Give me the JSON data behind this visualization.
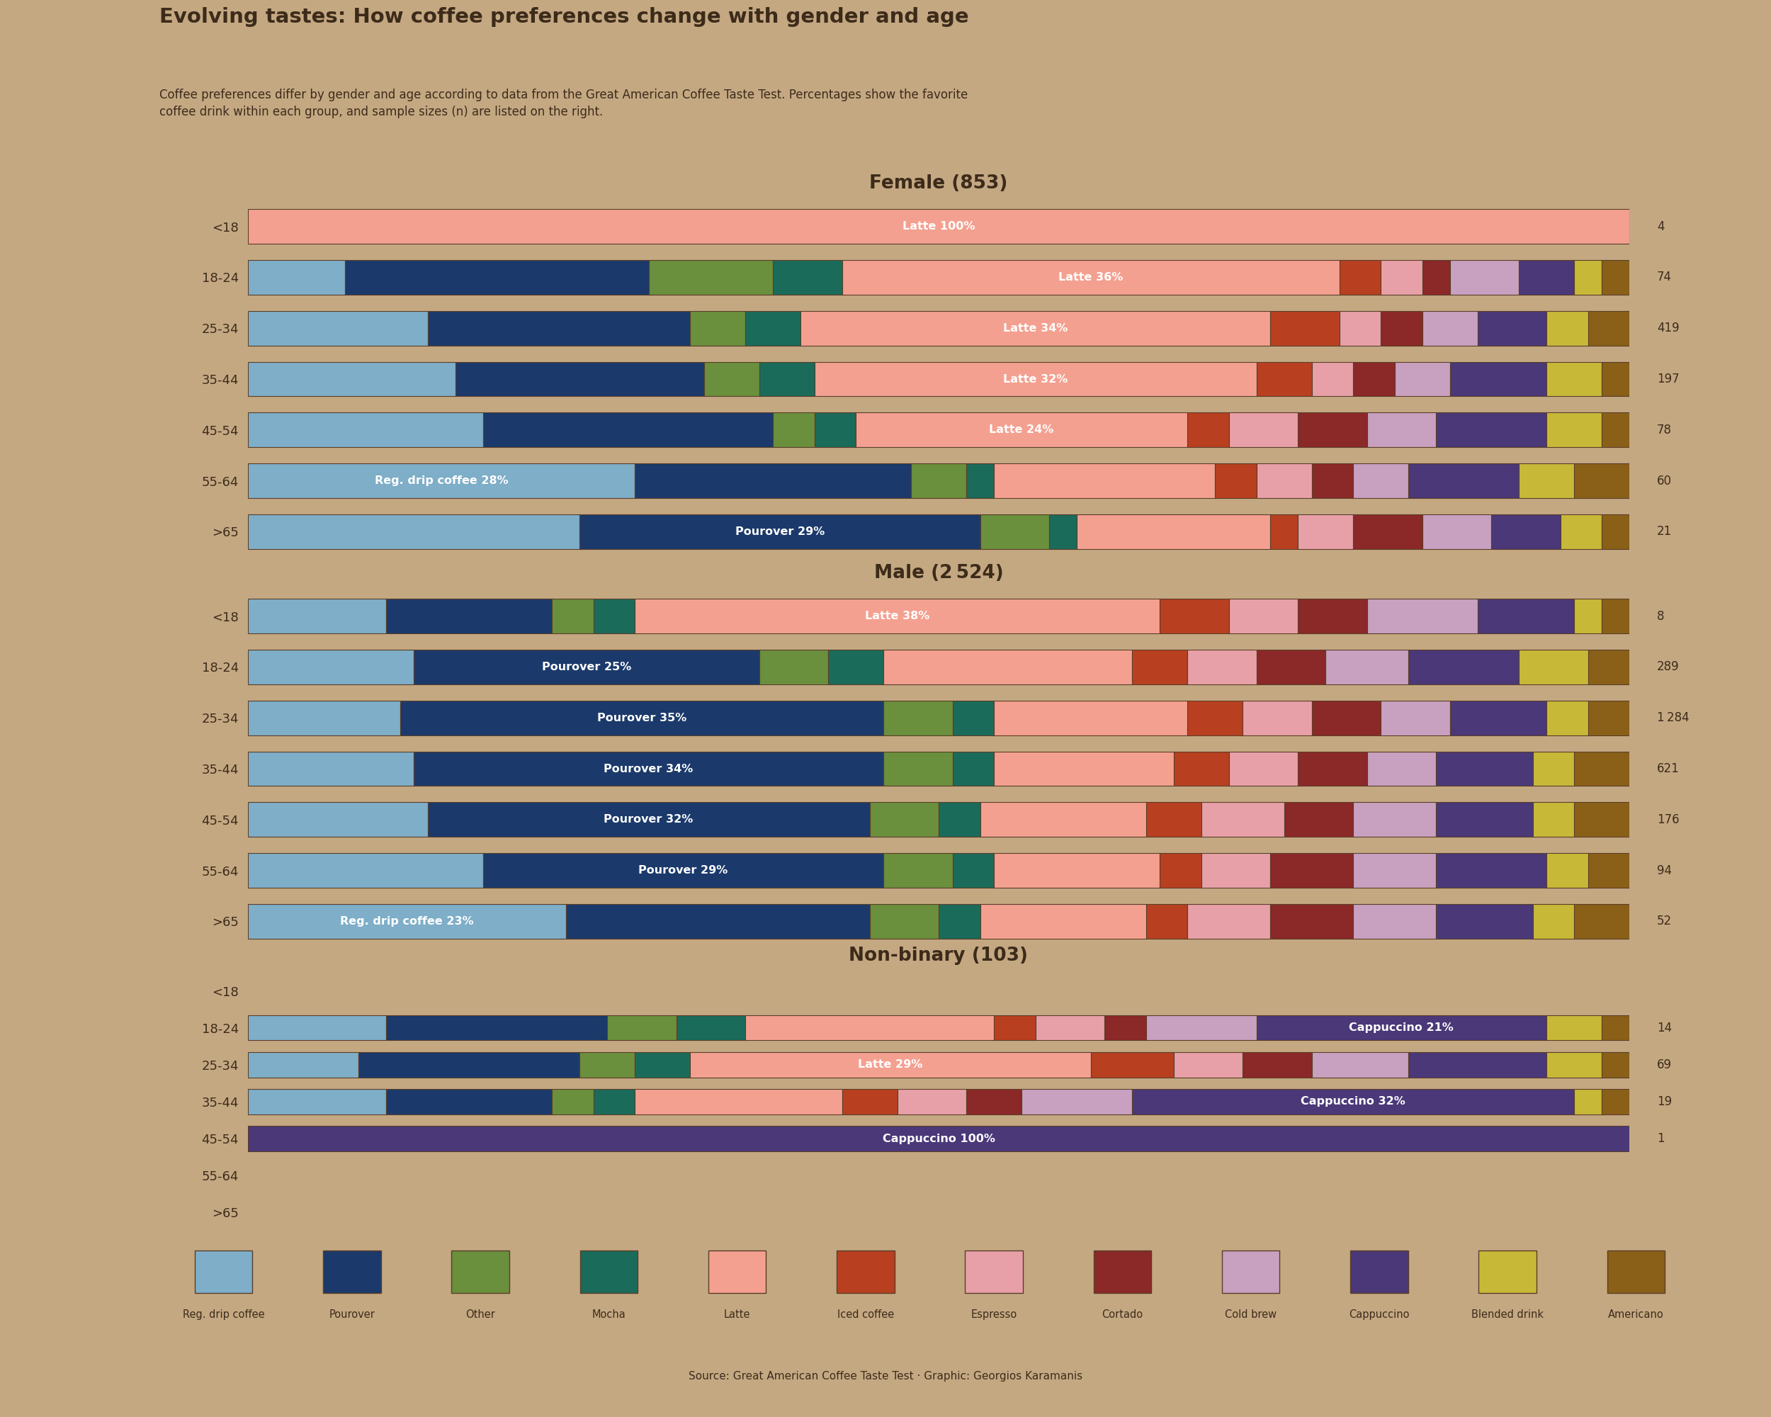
{
  "title": "Evolving tastes: How coffee preferences change with gender and age",
  "subtitle": "Coffee preferences differ by gender and age according to data from the Great American Coffee Taste Test. Percentages show the favorite\ncoffee drink within each group, and sample sizes (n) are listed on the right.",
  "source": "Source: Great American Coffee Taste Test · Graphic: Georgios Karamanis",
  "background_color": "#C4A882",
  "bar_edge_color": "#5a3e28",
  "text_color": "#3d2b1a",
  "categories": [
    "Reg. drip coffee",
    "Pourover",
    "Other",
    "Mocha",
    "Latte",
    "Iced coffee",
    "Espresso",
    "Cortado",
    "Cold brew",
    "Cappuccino",
    "Blended drink",
    "Americano"
  ],
  "colors": {
    "Reg. drip coffee": "#7eaec8",
    "Pourover": "#1b3a6b",
    "Other": "#6a8f3d",
    "Mocha": "#1b6b5a",
    "Latte": "#f4a090",
    "Iced coffee": "#b84020",
    "Espresso": "#e8a0a8",
    "Cortado": "#8b2828",
    "Cold brew": "#c8a0c0",
    "Cappuccino": "#4a3878",
    "Blended drink": "#c8b838",
    "Americano": "#8a6018"
  },
  "age_groups": [
    "<18",
    "18-24",
    "25-34",
    "35-44",
    "45-54",
    "55-64",
    ">65"
  ],
  "female_data": {
    "<18": {
      "Latte": 100
    },
    "18-24": {
      "Reg. drip coffee": 7,
      "Pourover": 22,
      "Other": 9,
      "Mocha": 5,
      "Latte": 36,
      "Iced coffee": 3,
      "Espresso": 3,
      "Cortado": 2,
      "Cold brew": 5,
      "Cappuccino": 4,
      "Blended drink": 2,
      "Americano": 2
    },
    "25-34": {
      "Reg. drip coffee": 13,
      "Pourover": 19,
      "Other": 4,
      "Mocha": 4,
      "Latte": 34,
      "Iced coffee": 5,
      "Espresso": 3,
      "Cortado": 3,
      "Cold brew": 4,
      "Cappuccino": 5,
      "Blended drink": 3,
      "Americano": 3
    },
    "35-44": {
      "Reg. drip coffee": 15,
      "Pourover": 18,
      "Other": 4,
      "Mocha": 4,
      "Latte": 32,
      "Iced coffee": 4,
      "Espresso": 3,
      "Cortado": 3,
      "Cold brew": 4,
      "Cappuccino": 7,
      "Blended drink": 4,
      "Americano": 2
    },
    "45-54": {
      "Reg. drip coffee": 17,
      "Pourover": 21,
      "Other": 3,
      "Mocha": 3,
      "Latte": 24,
      "Iced coffee": 3,
      "Espresso": 5,
      "Cortado": 5,
      "Cold brew": 5,
      "Cappuccino": 8,
      "Blended drink": 4,
      "Americano": 2
    },
    "55-64": {
      "Reg. drip coffee": 28,
      "Pourover": 20,
      "Other": 4,
      "Mocha": 2,
      "Latte": 16,
      "Iced coffee": 3,
      "Espresso": 4,
      "Cortado": 3,
      "Cold brew": 4,
      "Cappuccino": 8,
      "Blended drink": 4,
      "Americano": 4
    },
    ">65": {
      "Reg. drip coffee": 24,
      "Pourover": 29,
      "Other": 5,
      "Mocha": 2,
      "Latte": 14,
      "Iced coffee": 2,
      "Espresso": 4,
      "Cortado": 5,
      "Cold brew": 5,
      "Cappuccino": 5,
      "Blended drink": 3,
      "Americano": 2
    }
  },
  "female_n": {
    "<18": "4",
    "18-24": "74",
    "25-34": "419",
    "35-44": "197",
    "45-54": "78",
    "55-64": "60",
    ">65": "21"
  },
  "female_labels": {
    "<18": {
      "text": "Latte 100%",
      "cat": "Latte"
    },
    "18-24": {
      "text": "Latte 36%",
      "cat": "Latte"
    },
    "25-34": {
      "text": "Latte 34%",
      "cat": "Latte"
    },
    "35-44": {
      "text": "Latte 32%",
      "cat": "Latte"
    },
    "45-54": {
      "text": "Latte 24%",
      "cat": "Latte"
    },
    "55-64": {
      "text": "Reg. drip coffee 28%",
      "cat": "Reg. drip coffee"
    },
    ">65": {
      "text": "Pourover 29%",
      "cat": "Pourover"
    }
  },
  "male_data": {
    "<18": {
      "Reg. drip coffee": 10,
      "Pourover": 12,
      "Other": 3,
      "Mocha": 3,
      "Latte": 38,
      "Iced coffee": 5,
      "Espresso": 5,
      "Cortado": 5,
      "Cold brew": 8,
      "Cappuccino": 7,
      "Blended drink": 2,
      "Americano": 2
    },
    "18-24": {
      "Reg. drip coffee": 12,
      "Pourover": 25,
      "Other": 5,
      "Mocha": 4,
      "Latte": 18,
      "Iced coffee": 4,
      "Espresso": 5,
      "Cortado": 5,
      "Cold brew": 6,
      "Cappuccino": 8,
      "Blended drink": 5,
      "Americano": 3
    },
    "25-34": {
      "Reg. drip coffee": 11,
      "Pourover": 35,
      "Other": 5,
      "Mocha": 3,
      "Latte": 14,
      "Iced coffee": 4,
      "Espresso": 5,
      "Cortado": 5,
      "Cold brew": 5,
      "Cappuccino": 7,
      "Blended drink": 3,
      "Americano": 3
    },
    "35-44": {
      "Reg. drip coffee": 12,
      "Pourover": 34,
      "Other": 5,
      "Mocha": 3,
      "Latte": 13,
      "Iced coffee": 4,
      "Espresso": 5,
      "Cortado": 5,
      "Cold brew": 5,
      "Cappuccino": 7,
      "Blended drink": 3,
      "Americano": 4
    },
    "45-54": {
      "Reg. drip coffee": 13,
      "Pourover": 32,
      "Other": 5,
      "Mocha": 3,
      "Latte": 12,
      "Iced coffee": 4,
      "Espresso": 6,
      "Cortado": 5,
      "Cold brew": 6,
      "Cappuccino": 7,
      "Blended drink": 3,
      "Americano": 4
    },
    "55-64": {
      "Reg. drip coffee": 17,
      "Pourover": 29,
      "Other": 5,
      "Mocha": 3,
      "Latte": 12,
      "Iced coffee": 3,
      "Espresso": 5,
      "Cortado": 6,
      "Cold brew": 6,
      "Cappuccino": 8,
      "Blended drink": 3,
      "Americano": 3
    },
    ">65": {
      "Reg. drip coffee": 23,
      "Pourover": 22,
      "Other": 5,
      "Mocha": 3,
      "Latte": 12,
      "Iced coffee": 3,
      "Espresso": 6,
      "Cortado": 6,
      "Cold brew": 6,
      "Cappuccino": 7,
      "Blended drink": 3,
      "Americano": 4
    }
  },
  "male_n": {
    "<18": "8",
    "18-24": "289",
    "25-34": "1 284",
    "35-44": "621",
    "45-54": "176",
    "55-64": "94",
    ">65": "52"
  },
  "male_labels": {
    "<18": {
      "text": "Latte 38%",
      "cat": "Latte"
    },
    "18-24": {
      "text": "Pourover 25%",
      "cat": "Pourover"
    },
    "25-34": {
      "text": "Pourover 35%",
      "cat": "Pourover"
    },
    "35-44": {
      "text": "Pourover 34%",
      "cat": "Pourover"
    },
    "45-54": {
      "text": "Pourover 32%",
      "cat": "Pourover"
    },
    "55-64": {
      "text": "Pourover 29%",
      "cat": "Pourover"
    },
    ">65": {
      "text": "Reg. drip coffee 23%",
      "cat": "Reg. drip coffee"
    }
  },
  "nonbinary_data": {
    "<18": {},
    "18-24": {
      "Reg. drip coffee": 10,
      "Pourover": 16,
      "Other": 5,
      "Mocha": 5,
      "Latte": 18,
      "Iced coffee": 3,
      "Espresso": 5,
      "Cortado": 3,
      "Cold brew": 8,
      "Cappuccino": 21,
      "Blended drink": 4,
      "Americano": 2
    },
    "25-34": {
      "Reg. drip coffee": 8,
      "Pourover": 16,
      "Other": 4,
      "Mocha": 4,
      "Latte": 29,
      "Iced coffee": 6,
      "Espresso": 5,
      "Cortado": 5,
      "Cold brew": 7,
      "Cappuccino": 10,
      "Blended drink": 4,
      "Americano": 2
    },
    "35-44": {
      "Reg. drip coffee": 10,
      "Pourover": 12,
      "Other": 3,
      "Mocha": 3,
      "Latte": 15,
      "Iced coffee": 4,
      "Espresso": 5,
      "Cortado": 4,
      "Cold brew": 8,
      "Cappuccino": 32,
      "Blended drink": 2,
      "Americano": 2
    },
    "45-54": {
      "Cappuccino": 100
    },
    "55-64": {},
    ">65": {}
  },
  "nonbinary_n": {
    "<18": null,
    "18-24": "14",
    "25-34": "69",
    "35-44": "19",
    "45-54": "1",
    "55-64": null,
    ">65": null
  },
  "nonbinary_labels": {
    "<18": null,
    "18-24": {
      "text": "Cappuccino 21%",
      "cat": "Cappuccino"
    },
    "25-34": {
      "text": "Latte 29%",
      "cat": "Latte"
    },
    "35-44": {
      "text": "Cappuccino 32%",
      "cat": "Cappuccino"
    },
    "45-54": {
      "text": "Cappuccino 100%",
      "cat": "Cappuccino"
    },
    "55-64": null,
    ">65": null
  }
}
